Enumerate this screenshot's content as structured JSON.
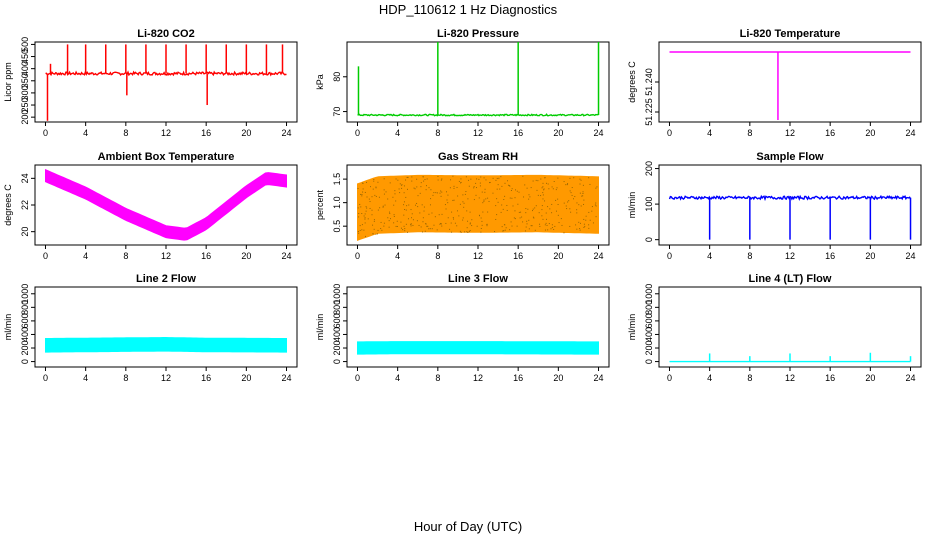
{
  "title": "HDP_110612  1 Hz Diagnostics",
  "xlabel": "Hour of Day (UTC)",
  "x_ticks": [
    "0",
    "4",
    "8",
    "12",
    "16",
    "20",
    "24"
  ],
  "chart_data": [
    {
      "type": "line",
      "title": "Li-820 CO2",
      "ylabel": "Licor ppm",
      "color": "#ff0000",
      "xlim": [
        0,
        24
      ],
      "ylim": [
        180,
        510
      ],
      "yticks": [
        "200",
        "250",
        "300",
        "350",
        "400",
        "450",
        "500"
      ],
      "ytick_values": [
        200,
        250,
        300,
        350,
        400,
        450,
        500
      ],
      "baseline": 380,
      "noise": 6,
      "spikes": [
        {
          "x": 0.2,
          "y": 185
        },
        {
          "x": 0.5,
          "y": 420
        },
        {
          "x": 2.2,
          "y": 500
        },
        {
          "x": 4.0,
          "y": 500
        },
        {
          "x": 6.0,
          "y": 500
        },
        {
          "x": 8.0,
          "y": 500
        },
        {
          "x": 8.1,
          "y": 290
        },
        {
          "x": 10.0,
          "y": 500
        },
        {
          "x": 12.0,
          "y": 500
        },
        {
          "x": 14.0,
          "y": 500
        },
        {
          "x": 16.0,
          "y": 500
        },
        {
          "x": 16.1,
          "y": 250
        },
        {
          "x": 18.0,
          "y": 500
        },
        {
          "x": 20.0,
          "y": 500
        },
        {
          "x": 22.0,
          "y": 500
        },
        {
          "x": 23.6,
          "y": 500
        }
      ]
    },
    {
      "type": "line",
      "title": "Li-820 Pressure",
      "ylabel": "kPa",
      "color": "#00cc00",
      "xlim": [
        0,
        24
      ],
      "ylim": [
        67,
        90
      ],
      "yticks": [
        "70",
        "80"
      ],
      "ytick_values": [
        70,
        80
      ],
      "baseline": 69,
      "noise": 0.2,
      "spikes": [
        {
          "x": 0.1,
          "y": 83
        },
        {
          "x": 8.0,
          "y": 90
        },
        {
          "x": 16.0,
          "y": 90
        },
        {
          "x": 24.0,
          "y": 90
        }
      ]
    },
    {
      "type": "line",
      "title": "Li-820 Temperature",
      "ylabel": "degrees C",
      "color": "#ff00ff",
      "xlim": [
        0,
        24
      ],
      "ylim": [
        51.22,
        51.26
      ],
      "yticks": [
        "51.225",
        "51.240"
      ],
      "ytick_values": [
        51.225,
        51.24
      ],
      "baseline": 51.255,
      "noise": 0,
      "spikes": [
        {
          "x": 10.8,
          "y": 51.221
        }
      ]
    },
    {
      "type": "band",
      "title": "Ambient Box Temperature",
      "ylabel": "degrees C",
      "color": "#ff00ff",
      "xlim": [
        0,
        24
      ],
      "ylim": [
        19,
        25
      ],
      "yticks": [
        "20",
        "22",
        "24"
      ],
      "ytick_values": [
        20,
        22,
        24
      ],
      "curve": [
        {
          "x": 0,
          "y": 24.2
        },
        {
          "x": 4,
          "y": 22.9
        },
        {
          "x": 8,
          "y": 21.3
        },
        {
          "x": 12,
          "y": 20.0
        },
        {
          "x": 14,
          "y": 19.8
        },
        {
          "x": 16,
          "y": 20.6
        },
        {
          "x": 20,
          "y": 23.0
        },
        {
          "x": 22,
          "y": 24.0
        },
        {
          "x": 24,
          "y": 23.8
        }
      ],
      "band": 0.45
    },
    {
      "type": "band",
      "title": "Gas Stream RH",
      "ylabel": "percent",
      "color": "#ff9900",
      "dot_color": "#996600",
      "xlim": [
        0,
        24
      ],
      "ylim": [
        0.1,
        1.8
      ],
      "yticks": [
        "0.5",
        "1.0",
        "1.5"
      ],
      "ytick_values": [
        0.5,
        1.0,
        1.5
      ],
      "curve": [
        {
          "x": 0,
          "y": 0.8
        },
        {
          "x": 2,
          "y": 0.95
        },
        {
          "x": 6,
          "y": 0.98
        },
        {
          "x": 12,
          "y": 0.97
        },
        {
          "x": 18,
          "y": 0.98
        },
        {
          "x": 24,
          "y": 0.95
        }
      ],
      "band": 0.6
    },
    {
      "type": "line",
      "title": "Sample Flow",
      "ylabel": "ml/min",
      "color": "#0000ff",
      "xlim": [
        0,
        24
      ],
      "ylim": [
        -15,
        210
      ],
      "yticks": [
        "0",
        "100",
        "200"
      ],
      "ytick_values": [
        0,
        100,
        200
      ],
      "baseline": 118,
      "noise": 4,
      "spikes": [
        {
          "x": 4.0,
          "y": 0
        },
        {
          "x": 8.0,
          "y": 0
        },
        {
          "x": 12.0,
          "y": 0
        },
        {
          "x": 16.0,
          "y": 0
        },
        {
          "x": 20.0,
          "y": 0
        },
        {
          "x": 24.0,
          "y": 0
        }
      ]
    },
    {
      "type": "band",
      "title": "Line 2 Flow",
      "ylabel": "ml/min",
      "color": "#00ffff",
      "xlim": [
        0,
        24
      ],
      "ylim": [
        -80,
        1100
      ],
      "yticks": [
        "0",
        "200",
        "400",
        "600",
        "800",
        "1000"
      ],
      "ytick_values": [
        0,
        200,
        400,
        600,
        800,
        1000
      ],
      "curve": [
        {
          "x": 0,
          "y": 240
        },
        {
          "x": 12,
          "y": 255
        },
        {
          "x": 16,
          "y": 245
        },
        {
          "x": 24,
          "y": 240
        }
      ],
      "band": 100
    },
    {
      "type": "band",
      "title": "Line 3 Flow",
      "ylabel": "ml/min",
      "color": "#00ffff",
      "xlim": [
        0,
        24
      ],
      "ylim": [
        -80,
        1100
      ],
      "yticks": [
        "0",
        "200",
        "400",
        "600",
        "800",
        "1000"
      ],
      "ytick_values": [
        0,
        200,
        400,
        600,
        800,
        1000
      ],
      "curve": [
        {
          "x": 0,
          "y": 200
        },
        {
          "x": 4,
          "y": 205
        },
        {
          "x": 12,
          "y": 205
        },
        {
          "x": 24,
          "y": 200
        }
      ],
      "band": 90
    },
    {
      "type": "line",
      "title": "Line 4 (LT) Flow",
      "ylabel": "ml/min",
      "color": "#00ffff",
      "xlim": [
        0,
        24
      ],
      "ylim": [
        -80,
        1100
      ],
      "yticks": [
        "0",
        "200",
        "400",
        "600",
        "800",
        "1000"
      ],
      "ytick_values": [
        0,
        200,
        400,
        600,
        800,
        1000
      ],
      "baseline": 0,
      "noise": 0,
      "spikes": [
        {
          "x": 4.0,
          "y": 120
        },
        {
          "x": 8.0,
          "y": 80
        },
        {
          "x": 12.0,
          "y": 120
        },
        {
          "x": 16.0,
          "y": 80
        },
        {
          "x": 20.0,
          "y": 130
        },
        {
          "x": 24.0,
          "y": 80
        }
      ]
    }
  ]
}
